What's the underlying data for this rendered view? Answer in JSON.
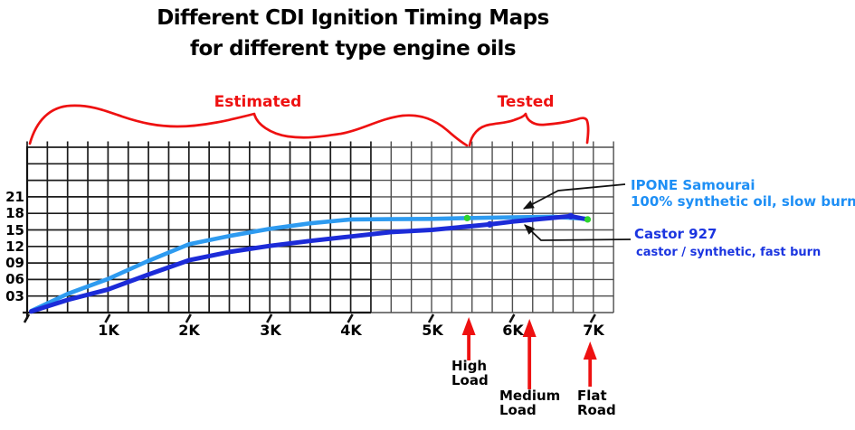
{
  "page": {
    "background": "#ffffff"
  },
  "title": {
    "line1": "Different CDI Ignition Timing Maps",
    "line2": "for different type engine oils"
  },
  "region_labels": {
    "estimated": "Estimated",
    "tested": "Tested"
  },
  "axis_arrow_labels": {
    "high_load": "High Load",
    "medium_load": "Medium Load",
    "flat_road": "Flat Road"
  },
  "legend": {
    "ipone": {
      "name": "IPONE Samourai",
      "desc": "100% synthetic oil, slow burn",
      "color": "#1e8ff5"
    },
    "castor": {
      "name": "Castor 927",
      "desc": "castor / synthetic, fast burn",
      "color": "#1b35e0"
    }
  },
  "colors": {
    "red": "#ee1111",
    "grid_dark": "#1c1c1c",
    "grid_light": "#4f4f4f",
    "axis": "#111111",
    "leader_black": "#111111",
    "green_marker": "#2ed52e",
    "ipone_line": "#2e9bf0",
    "castor_line": "#1c2bd8"
  },
  "chart_data": {
    "type": "line",
    "title": "Different CDI Ignition Timing Maps for different type engine oils",
    "xlabel": "",
    "ylabel": "",
    "grid": true,
    "x_tick_labels": [
      "1K",
      "2K",
      "3K",
      "4K",
      "5K",
      "6K",
      "7K"
    ],
    "y_tick_labels": [
      "21",
      "18",
      "15",
      "12",
      "09",
      "06",
      "03"
    ],
    "xlim_rpm_k": [
      0,
      7.25
    ],
    "ylim_degrees": [
      0,
      30
    ],
    "series": [
      {
        "name": "IPONE Samourai",
        "desc": "100% synthetic oil, slow burn",
        "color": "#2e9bf0",
        "points_rpm_k_deg": [
          [
            0.05,
            0.3
          ],
          [
            0.5,
            3.4
          ],
          [
            1,
            6.1
          ],
          [
            1.5,
            9.4
          ],
          [
            2,
            12.4
          ],
          [
            2.5,
            13.9
          ],
          [
            3,
            15.2
          ],
          [
            3.5,
            16.2
          ],
          [
            4,
            16.9
          ],
          [
            4.5,
            16.95
          ],
          [
            5,
            17.0
          ],
          [
            5.44,
            17.15
          ],
          [
            6,
            17.3
          ],
          [
            6.5,
            17.4
          ],
          [
            6.93,
            17.0
          ]
        ]
      },
      {
        "name": "Castor 927",
        "desc": "castor / synthetic, fast burn",
        "color": "#1c2bd8",
        "points_rpm_k_deg": [
          [
            0.05,
            0.2
          ],
          [
            0.5,
            2.3
          ],
          [
            1,
            4.2
          ],
          [
            1.5,
            6.9
          ],
          [
            2,
            9.5
          ],
          [
            2.5,
            11.0
          ],
          [
            3,
            12.1
          ],
          [
            3.5,
            13.0
          ],
          [
            4,
            13.8
          ],
          [
            4.5,
            14.6
          ],
          [
            5,
            15.0
          ],
          [
            5.72,
            16.0
          ],
          [
            6,
            16.5
          ],
          [
            6.5,
            17.2
          ],
          [
            6.72,
            17.5
          ],
          [
            6.93,
            16.9
          ]
        ]
      }
    ],
    "markers": [
      {
        "x_rpm_k": 5.44,
        "y_deg": 17.15,
        "color": "#2ed52e"
      },
      {
        "x_rpm_k": 5.72,
        "y_deg": 16.0,
        "color": "#1c2bd8"
      },
      {
        "x_rpm_k": 6.72,
        "y_deg": 17.5,
        "color": "#1c2bd8"
      },
      {
        "x_rpm_k": 6.93,
        "y_deg": 16.9,
        "color": "#2ed52e"
      }
    ],
    "regions": [
      {
        "label": "Estimated",
        "x_range_rpm_k": [
          0,
          5.45
        ]
      },
      {
        "label": "Tested",
        "x_range_rpm_k": [
          5.45,
          6.95
        ]
      }
    ],
    "rpm_arrows": [
      {
        "label": "High Load",
        "x_rpm_k": 5.46
      },
      {
        "label": "Medium Load",
        "x_rpm_k": 6.21
      },
      {
        "label": "Flat Road",
        "x_rpm_k": 6.96
      }
    ]
  }
}
